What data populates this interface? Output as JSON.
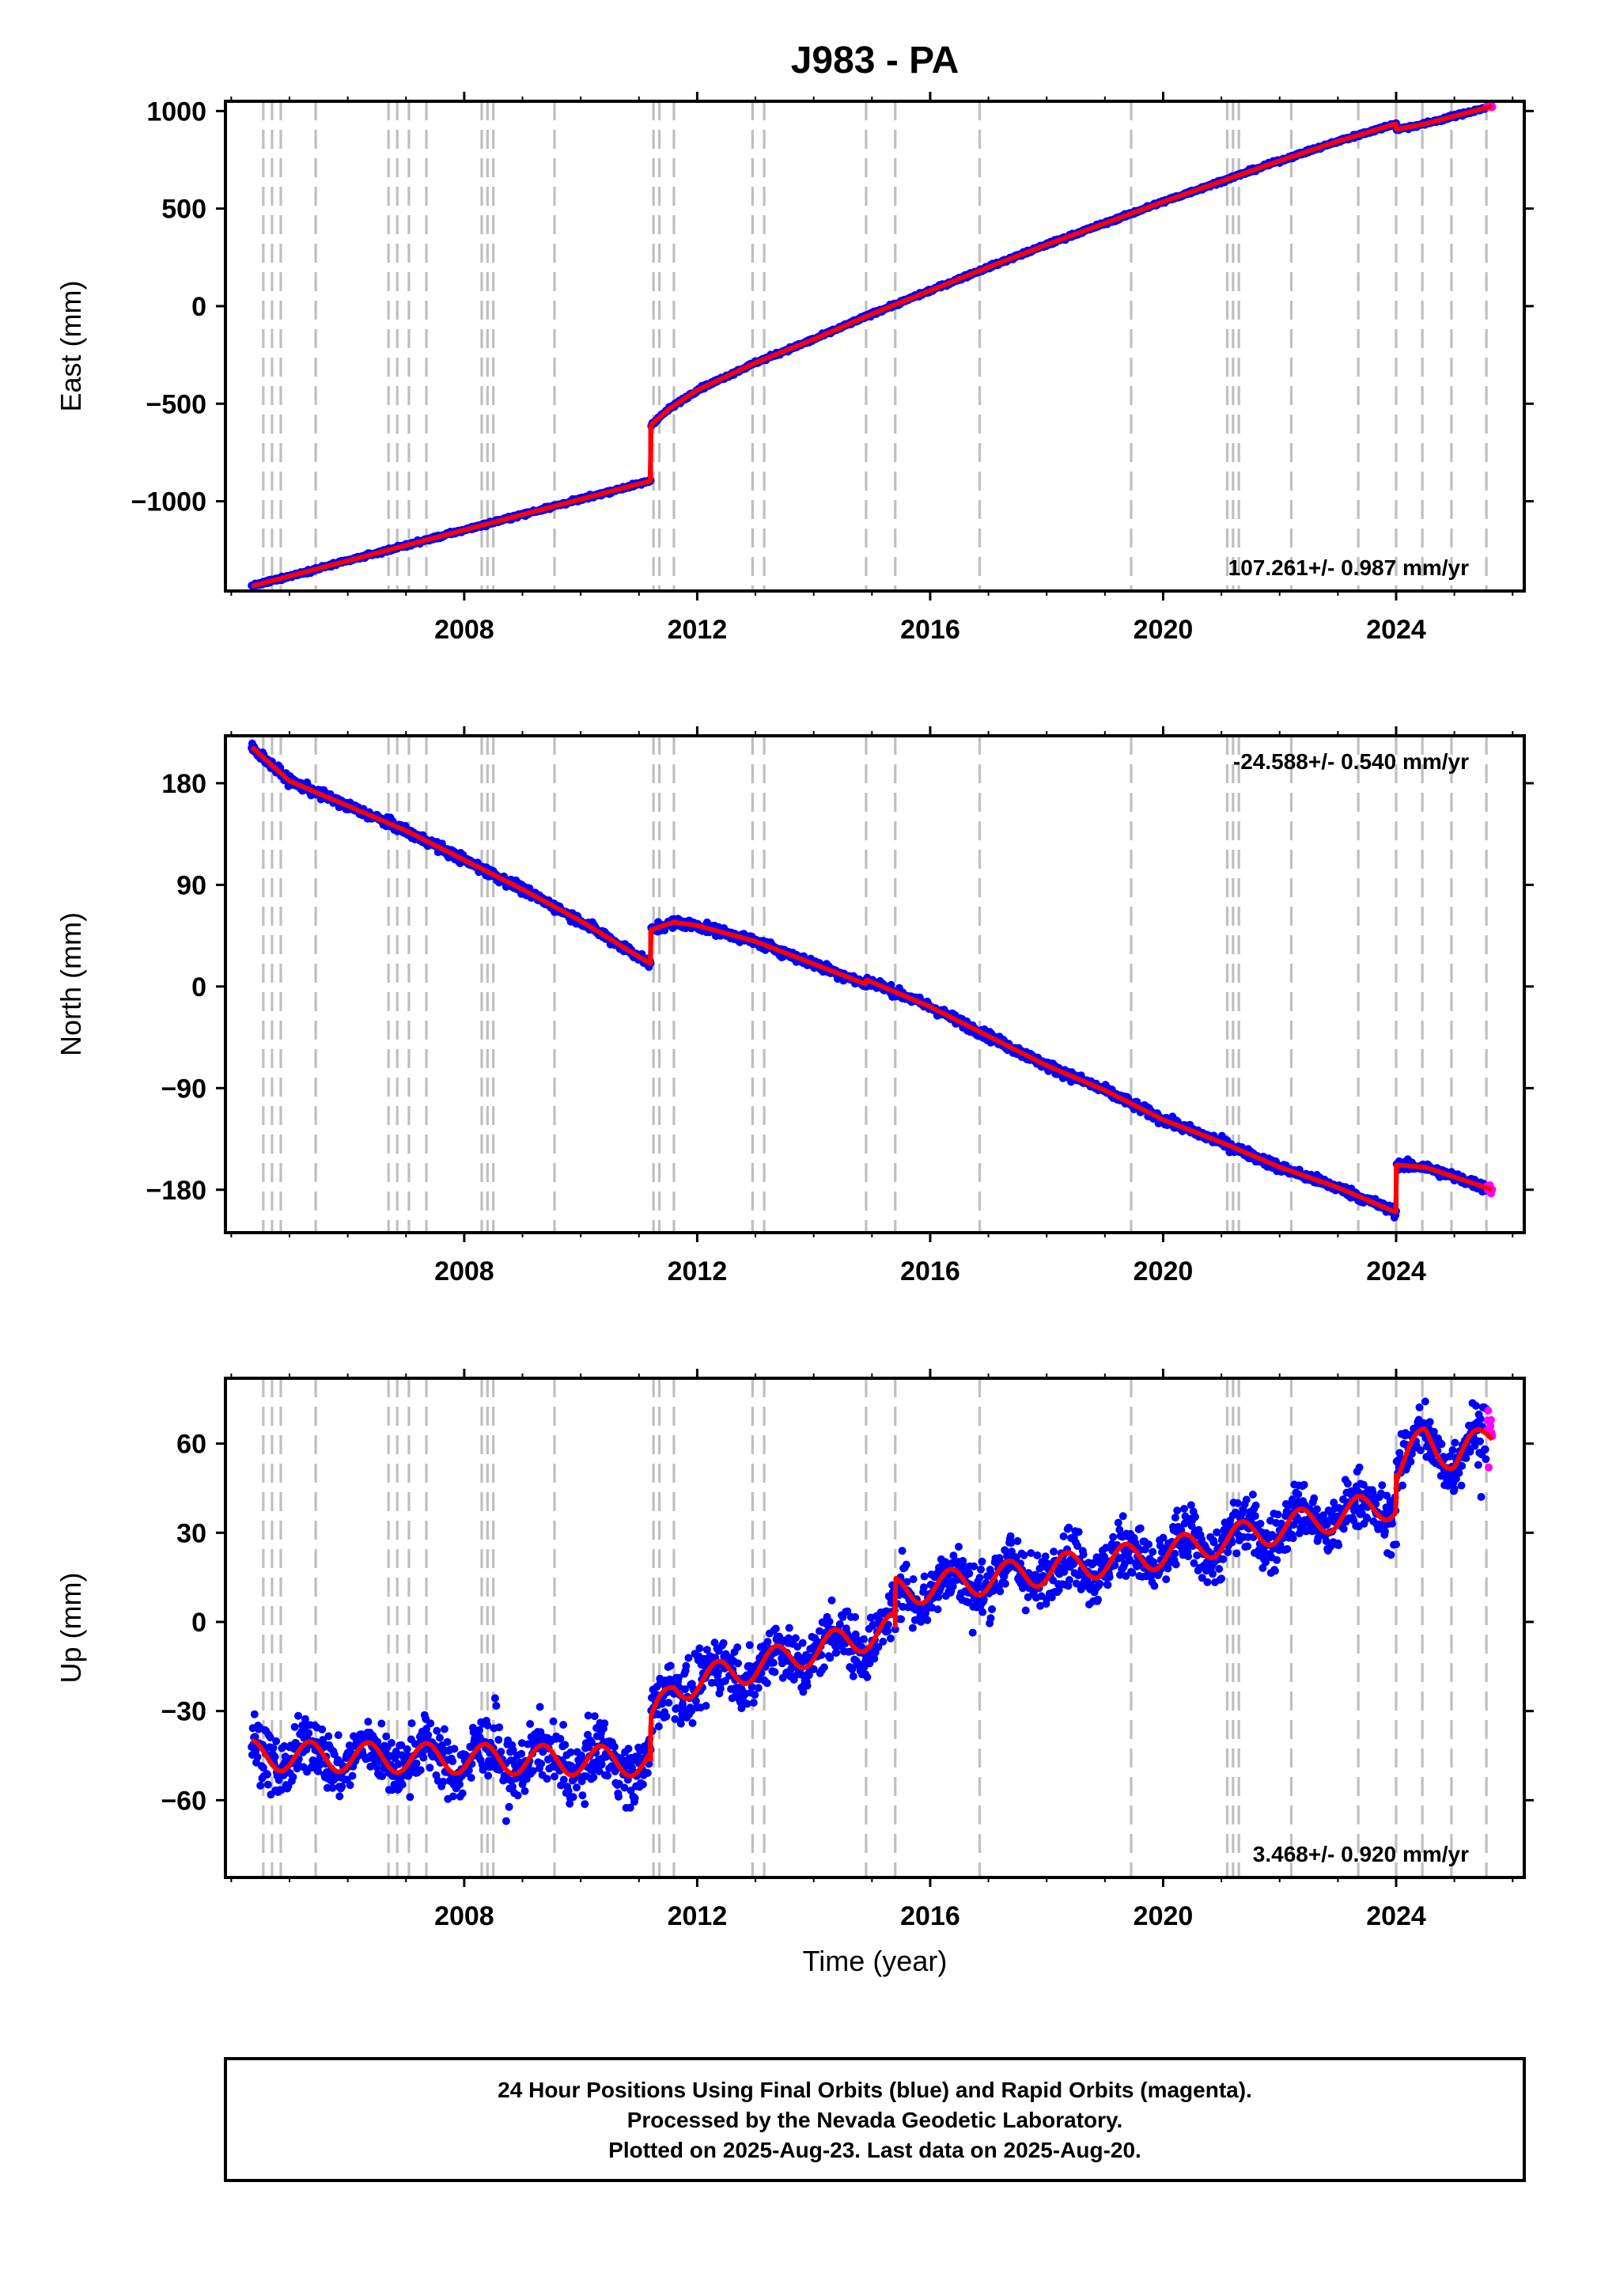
{
  "title": "J983 - PA",
  "chart_data": [
    {
      "type": "scatter",
      "id": "east",
      "ylabel": "East (mm)",
      "xlabel": "",
      "xlim": [
        2003.9,
        2026.2
      ],
      "ylim": [
        -1460,
        1050
      ],
      "xticks": [
        2008,
        2012,
        2016,
        2020,
        2024
      ],
      "xtick_labels": [
        "2008",
        "2012",
        "2016",
        "2020",
        "2024"
      ],
      "yticks": [
        1000,
        500,
        0,
        -500,
        -1000
      ],
      "ytick_labels": [
        "1000",
        "500",
        "0",
        "−500",
        "−1000"
      ],
      "rate_label": "107.261+/- 0.987 mm/yr",
      "rate_position": "bottom-right",
      "trend": [
        [
          2004.35,
          -1435
        ],
        [
          2011.2,
          -895
        ],
        [
          2011.2,
          -610
        ],
        [
          2011.5,
          -530
        ],
        [
          2012.0,
          -430
        ],
        [
          2013.0,
          -290
        ],
        [
          2014.0,
          -170
        ],
        [
          2015.0,
          -40
        ],
        [
          2016.0,
          80
        ],
        [
          2017.0,
          200
        ],
        [
          2018.0,
          315
        ],
        [
          2019.0,
          425
        ],
        [
          2020.0,
          535
        ],
        [
          2021.0,
          640
        ],
        [
          2022.0,
          745
        ],
        [
          2023.0,
          845
        ],
        [
          2024.0,
          935
        ],
        [
          2024.0,
          905
        ],
        [
          2024.5,
          935
        ],
        [
          2025.65,
          1025
        ]
      ],
      "noise": 6,
      "seasonal": 0,
      "rapid_from": 2025.55
    },
    {
      "type": "scatter",
      "id": "north",
      "ylabel": "North (mm)",
      "xlabel": "",
      "xlim": [
        2003.9,
        2026.2
      ],
      "ylim": [
        -218,
        222
      ],
      "xticks": [
        2008,
        2012,
        2016,
        2020,
        2024
      ],
      "xtick_labels": [
        "2008",
        "2012",
        "2016",
        "2020",
        "2024"
      ],
      "yticks": [
        180,
        90,
        0,
        -90,
        -180
      ],
      "ytick_labels": [
        "180",
        "90",
        "0",
        "−90",
        "−180"
      ],
      "rate_label": "-24.588+/- 0.540 mm/yr",
      "rate_position": "top-right",
      "trend": [
        [
          2004.35,
          212
        ],
        [
          2005.0,
          182
        ],
        [
          2006.0,
          160
        ],
        [
          2007.0,
          138
        ],
        [
          2008.0,
          112
        ],
        [
          2009.0,
          86
        ],
        [
          2010.0,
          58
        ],
        [
          2011.2,
          20
        ],
        [
          2011.2,
          50
        ],
        [
          2011.6,
          57
        ],
        [
          2012.0,
          54
        ],
        [
          2013.0,
          40
        ],
        [
          2014.0,
          20
        ],
        [
          2014.9,
          2
        ],
        [
          2014.9,
          6
        ],
        [
          2016.0,
          -18
        ],
        [
          2017.0,
          -44
        ],
        [
          2018.0,
          -70
        ],
        [
          2019.0,
          -92
        ],
        [
          2020.0,
          -118
        ],
        [
          2021.0,
          -138
        ],
        [
          2022.0,
          -160
        ],
        [
          2023.0,
          -178
        ],
        [
          2024.0,
          -200
        ],
        [
          2024.0,
          -158
        ],
        [
          2024.5,
          -160
        ],
        [
          2025.65,
          -180
        ]
      ],
      "noise": 3,
      "seasonal": 0,
      "rapid_from": 2025.55
    },
    {
      "type": "scatter",
      "id": "up",
      "ylabel": "Up (mm)",
      "xlabel": "Time (year)",
      "xlim": [
        2003.9,
        2026.2
      ],
      "ylim": [
        -86,
        82
      ],
      "xticks": [
        2008,
        2012,
        2016,
        2020,
        2024
      ],
      "xtick_labels": [
        "2008",
        "2012",
        "2016",
        "2020",
        "2024"
      ],
      "yticks": [
        60,
        30,
        0,
        -30,
        -60
      ],
      "ytick_labels": [
        "60",
        "30",
        "0",
        "−30",
        "−60"
      ],
      "rate_label": "3.468+/- 0.920 mm/yr",
      "rate_position": "bottom-right",
      "trend": [
        [
          2004.35,
          -45
        ],
        [
          2011.2,
          -47
        ],
        [
          2011.2,
          -35
        ],
        [
          2011.6,
          -22
        ],
        [
          2013.0,
          -15
        ],
        [
          2015.4,
          -2
        ],
        [
          2015.4,
          10
        ],
        [
          2020.0,
          23
        ],
        [
          2024.0,
          40
        ],
        [
          2024.0,
          50
        ],
        [
          2024.5,
          62
        ],
        [
          2025.0,
          55
        ],
        [
          2025.65,
          63
        ]
      ],
      "noise": 7,
      "seasonal": 5,
      "rapid_from": 2025.55
    }
  ],
  "event_lines": [
    2004.55,
    2004.7,
    2004.85,
    2005.45,
    2006.7,
    2006.85,
    2007.05,
    2007.35,
    2008.3,
    2008.4,
    2008.5,
    2009.55,
    2011.25,
    2011.35,
    2011.6,
    2012.95,
    2013.15,
    2014.9,
    2015.4,
    2016.85,
    2019.45,
    2021.1,
    2021.2,
    2021.3,
    2022.2,
    2023.35,
    2024.0,
    2024.45,
    2024.95,
    2025.55
  ],
  "colors": {
    "final_orbits": "#0000ff",
    "rapid_orbits": "#ff00ff",
    "trend": "#ff0000",
    "event_lines": "#bfbfbf"
  },
  "footer": {
    "line1": "24 Hour Positions Using Final Orbits (blue) and Rapid Orbits (magenta).",
    "line2": "Processed by the Nevada Geodetic Laboratory.",
    "line3": "Plotted on 2025-Aug-23. Last data on 2025-Aug-20."
  }
}
